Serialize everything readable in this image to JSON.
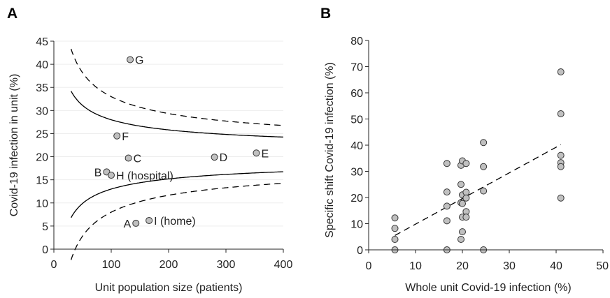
{
  "colors": {
    "marker_fill": "#c0c0c0",
    "marker_stroke": "#333333",
    "line": "#000000",
    "grid": "#ededed"
  },
  "chart_data": [
    {
      "panel": "A",
      "type": "scatter",
      "xlabel": "Unit population size (patients)",
      "ylabel": "Covid-19 infection in unit (%)",
      "xlim": [
        0,
        400
      ],
      "ylim": [
        0,
        45
      ],
      "xticks": [
        "0",
        "100",
        "200",
        "300",
        "400"
      ],
      "yticks": [
        "0",
        "5",
        "10",
        "15",
        "20",
        "25",
        "30",
        "35",
        "40",
        "45"
      ],
      "grid": "horizontal",
      "points": [
        {
          "label": "G",
          "x": 133,
          "y": 41
        },
        {
          "label": "F",
          "x": 110,
          "y": 24.5
        },
        {
          "label": "C",
          "x": 130,
          "y": 19.7
        },
        {
          "label": "D",
          "x": 280,
          "y": 19.9
        },
        {
          "label": "E",
          "x": 353,
          "y": 20.8
        },
        {
          "label": "B",
          "x": 92,
          "y": 16.7
        },
        {
          "label": "H (hospital)",
          "x": 100,
          "y": 16
        },
        {
          "label": "A",
          "x": 143,
          "y": 5.6
        },
        {
          "label": "I (home)",
          "x": 166,
          "y": 6.2
        }
      ],
      "funnel_center": 20.5,
      "funnel_inner_k": 75,
      "funnel_outer_k": 125,
      "funnel_x_start": 30,
      "funnel_x_end": 400
    },
    {
      "panel": "B",
      "type": "scatter",
      "xlabel": "Whole unit Covid-19 infection (%)",
      "ylabel": "Specific shift Covid-19 infection (%)",
      "xlim": [
        0,
        50
      ],
      "ylim": [
        0,
        80
      ],
      "xticks": [
        "0",
        "10",
        "20",
        "30",
        "40",
        "50"
      ],
      "yticks": [
        "0",
        "10",
        "20",
        "30",
        "40",
        "50",
        "60",
        "70",
        "80"
      ],
      "grid": "none",
      "points": [
        {
          "x": 5.6,
          "y": 12.2
        },
        {
          "x": 5.6,
          "y": 8.2
        },
        {
          "x": 5.6,
          "y": 4
        },
        {
          "x": 5.6,
          "y": 0
        },
        {
          "x": 16.7,
          "y": 33
        },
        {
          "x": 16.7,
          "y": 22.1
        },
        {
          "x": 16.7,
          "y": 16.7
        },
        {
          "x": 16.7,
          "y": 11.1
        },
        {
          "x": 16.7,
          "y": 0
        },
        {
          "x": 19.7,
          "y": 32.3
        },
        {
          "x": 19.7,
          "y": 25
        },
        {
          "x": 19.7,
          "y": 18
        },
        {
          "x": 19.7,
          "y": 4
        },
        {
          "x": 20,
          "y": 34
        },
        {
          "x": 20,
          "y": 21
        },
        {
          "x": 20,
          "y": 17.7
        },
        {
          "x": 20,
          "y": 12.5
        },
        {
          "x": 20,
          "y": 6.9
        },
        {
          "x": 20.8,
          "y": 33
        },
        {
          "x": 20.8,
          "y": 22
        },
        {
          "x": 20.8,
          "y": 19.8
        },
        {
          "x": 20.8,
          "y": 14.6
        },
        {
          "x": 20.8,
          "y": 12.5
        },
        {
          "x": 24.5,
          "y": 41
        },
        {
          "x": 24.5,
          "y": 31.8
        },
        {
          "x": 24.5,
          "y": 22.5
        },
        {
          "x": 24.5,
          "y": 0
        },
        {
          "x": 41,
          "y": 68
        },
        {
          "x": 41,
          "y": 52
        },
        {
          "x": 41,
          "y": 36.1
        },
        {
          "x": 41,
          "y": 33.3
        },
        {
          "x": 41,
          "y": 31.8
        },
        {
          "x": 41,
          "y": 19.8
        }
      ],
      "fit_line": [
        [
          5.6,
          5.5
        ],
        [
          41,
          40.2
        ]
      ]
    }
  ]
}
